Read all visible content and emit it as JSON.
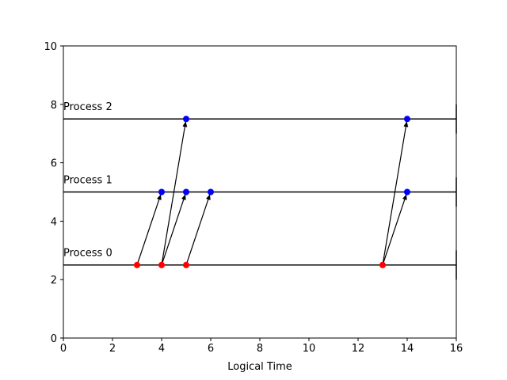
{
  "chart_data": {
    "type": "scatter",
    "title": "",
    "xlabel": "Logical Time",
    "ylabel": "",
    "xlim": [
      0,
      16
    ],
    "ylim": [
      0,
      10
    ],
    "xticks": [
      0,
      2,
      4,
      6,
      8,
      10,
      12,
      14,
      16
    ],
    "yticks": [
      0,
      2,
      4,
      6,
      8,
      10
    ],
    "grid": false,
    "processes": [
      {
        "label": "Process 0",
        "y": 2.5
      },
      {
        "label": "Process 1",
        "y": 5.0
      },
      {
        "label": "Process 2",
        "y": 7.5
      }
    ],
    "send_events": {
      "color": "#ff0000",
      "points": [
        [
          3,
          2.5
        ],
        [
          4,
          2.5
        ],
        [
          5,
          2.5
        ],
        [
          13,
          2.5
        ]
      ]
    },
    "receive_events": {
      "color": "#0000ff",
      "points": [
        [
          4,
          5.0
        ],
        [
          5,
          5.0
        ],
        [
          6,
          5.0
        ],
        [
          5,
          7.5
        ],
        [
          14,
          5.0
        ],
        [
          14,
          7.5
        ]
      ]
    },
    "messages": [
      {
        "from": [
          3,
          2.5
        ],
        "to": [
          4,
          5.0
        ]
      },
      {
        "from": [
          4,
          2.5
        ],
        "to": [
          5,
          5.0
        ]
      },
      {
        "from": [
          4,
          2.5
        ],
        "to": [
          5,
          7.5
        ]
      },
      {
        "from": [
          5,
          2.5
        ],
        "to": [
          6,
          5.0
        ]
      },
      {
        "from": [
          13,
          2.5
        ],
        "to": [
          14,
          5.0
        ]
      },
      {
        "from": [
          13,
          2.5
        ],
        "to": [
          14,
          7.5
        ]
      }
    ],
    "timeline_color": "#000000"
  }
}
